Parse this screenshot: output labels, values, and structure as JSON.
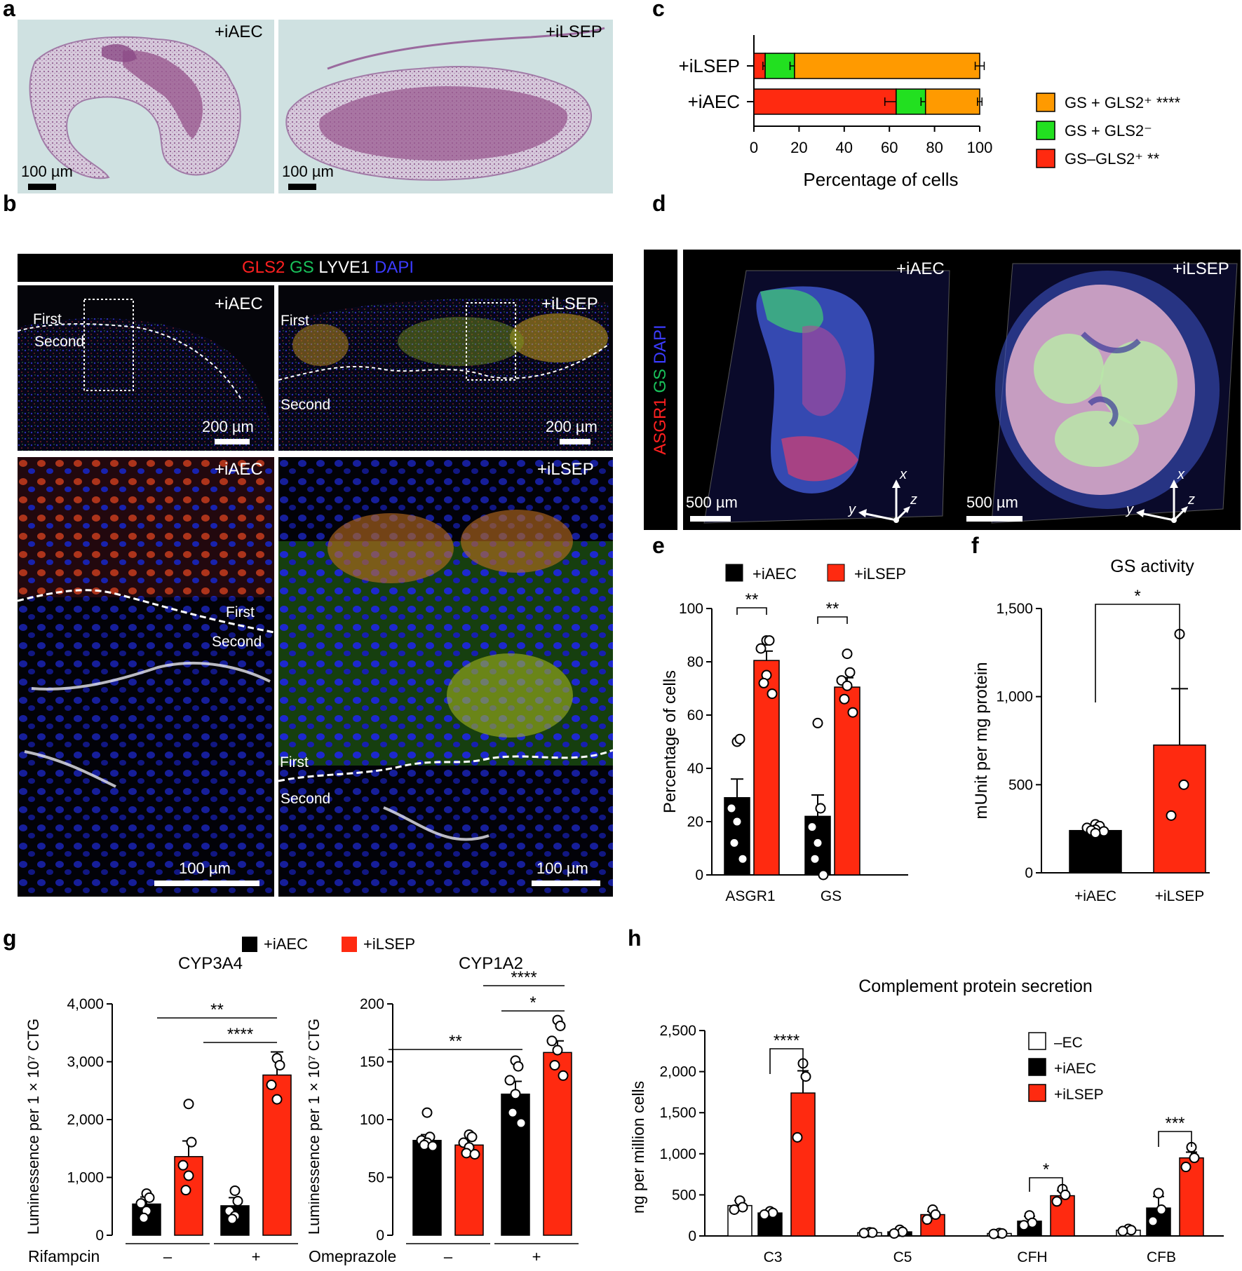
{
  "panel_labels": {
    "a": "a",
    "b": "b",
    "c": "c",
    "d": "d",
    "e": "e",
    "f": "f",
    "g": "g",
    "h": "h"
  },
  "panel_a": {
    "cond_left": "+iAEC",
    "cond_right": "+iLSEP",
    "scale_left": "100 µm",
    "scale_right": "100 µm",
    "colors": {
      "background": "#cfe1e1",
      "tissue": "#9a5a90"
    }
  },
  "panel_b": {
    "legend": {
      "gls2": "GLS2",
      "gs": "GS",
      "lyve1": "LYVE1",
      "dapi": "DAPI"
    },
    "legend_colors": {
      "gls2": "#ff2020",
      "gs": "#19c15a",
      "lyve1": "#ffffff",
      "dapi": "#3b3bff"
    },
    "top_left": {
      "cond": "+iAEC",
      "first": "First",
      "second": "Second",
      "scale": "200 µm"
    },
    "top_right": {
      "cond": "+iLSEP",
      "first": "First",
      "second": "Second",
      "scale": "200 µm"
    },
    "bottom_left": {
      "cond": "+iAEC",
      "first": "First",
      "second": "Second",
      "scale": "100 µm"
    },
    "bottom_right": {
      "cond": "+iLSEP",
      "first": "First",
      "second": "Second",
      "scale": "100 µm"
    }
  },
  "panel_d": {
    "side_label": {
      "asgr1": "ASGR1",
      "gs": "GS",
      "dapi": "DAPI"
    },
    "left": {
      "cond": "+iAEC",
      "scale": "500 µm",
      "x": "x",
      "y": "y",
      "z": "z"
    },
    "right": {
      "cond": "+iLSEP",
      "scale": "500 µm",
      "x": "x",
      "y": "y",
      "z": "z"
    }
  },
  "chart_data": [
    {
      "panel": "c",
      "type": "bar",
      "orientation": "horizontal-stacked",
      "categories": [
        "+iLSEP",
        "+iAEC"
      ],
      "series": [
        {
          "name": "GS–GLS2⁺ **",
          "color": "#ff2a10",
          "values": [
            5,
            63
          ],
          "errors": [
            1,
            5
          ]
        },
        {
          "name": "GS + GLS2⁻",
          "color": "#22e020",
          "values": [
            13,
            13
          ],
          "errors": [
            2,
            2
          ]
        },
        {
          "name": "GS + GLS2⁺ ****",
          "color": "#ff9a00",
          "values": [
            82,
            24
          ],
          "errors": [
            2,
            1
          ]
        }
      ],
      "legend_order": [
        "GS + GLS2⁺ ****",
        "GS + GLS2⁻",
        "GS–GLS2⁺ **"
      ],
      "xlabel": "Percentage of cells",
      "xlim": [
        0,
        100
      ],
      "xticks": [
        "0",
        "20",
        "40",
        "60",
        "80",
        "100"
      ],
      "legend_position": "right"
    },
    {
      "panel": "e",
      "type": "bar",
      "categories": [
        "ASGR1",
        "GS"
      ],
      "series": [
        {
          "name": "+iAEC",
          "color": "#000000",
          "values": [
            29,
            22
          ],
          "errors": [
            7,
            8
          ],
          "points": [
            [
              50,
              51,
              25,
              20,
              12,
              6
            ],
            [
              57,
              25,
              18,
              12,
              6,
              0
            ]
          ]
        },
        {
          "name": "+iLSEP",
          "color": "#ff2a10",
          "values": [
            80.5,
            70.5
          ],
          "errors": [
            3.5,
            3.5
          ],
          "points": [
            [
              88,
              88,
              85,
              75,
              72,
              68
            ],
            [
              83,
              76,
              73,
              71,
              66,
              61
            ]
          ]
        }
      ],
      "ylabel": "Percentage  of cells",
      "ylim": [
        0,
        100
      ],
      "yticks": [
        "0",
        "20",
        "40",
        "60",
        "80",
        "100"
      ],
      "significance": [
        "**",
        "**"
      ],
      "legend_position": "top"
    },
    {
      "panel": "f",
      "type": "bar",
      "title": "GS activity",
      "categories": [
        "+iAEC",
        "+iLSEP"
      ],
      "values": [
        240,
        725
      ],
      "errors": [
        18,
        320
      ],
      "colors": [
        "#000000",
        "#ff2a10"
      ],
      "points": [
        [
          275,
          265,
          255,
          245,
          240,
          235,
          225
        ],
        [
          1355,
          500,
          325
        ]
      ],
      "ylabel": "mUnit per mg protein",
      "ylim": [
        0,
        1500
      ],
      "yticks": [
        "0",
        "500",
        "1,000",
        "1,500"
      ],
      "significance": [
        "*"
      ]
    },
    {
      "panel": "g-left",
      "type": "bar",
      "title": "CYP3A4",
      "series_names": [
        "+iAEC",
        "+iLSEP"
      ],
      "categories": [
        "–",
        "–",
        "+",
        "+"
      ],
      "groups": [
        {
          "treatment": "–",
          "series": "+iAEC",
          "value": 540,
          "error": 120,
          "points": [
            720,
            650,
            550,
            420,
            300
          ]
        },
        {
          "treatment": "–",
          "series": "+iLSEP",
          "value": 1360,
          "error": 270,
          "points": [
            2270,
            1610,
            1210,
            1030,
            780
          ]
        },
        {
          "treatment": "+",
          "series": "+iAEC",
          "value": 510,
          "error": 140,
          "points": [
            770,
            590,
            420,
            330,
            280
          ]
        },
        {
          "treatment": "+",
          "series": "+iLSEP",
          "value": 2770,
          "error": 400,
          "points": [
            3060,
            2940,
            2600,
            2350
          ]
        }
      ],
      "ylabel": "Luminessence per 1 × 10⁷ CTG",
      "xlabel": "Rifampcin",
      "ylim": [
        0,
        4000
      ],
      "yticks": [
        "0",
        "1,000",
        "2,000",
        "3,000",
        "4,000"
      ],
      "significance": [
        "**",
        "****"
      ]
    },
    {
      "panel": "g-right",
      "type": "bar",
      "title": "CYP1A2",
      "series_names": [
        "+iAEC",
        "+iLSEP"
      ],
      "categories": [
        "–",
        "–",
        "+",
        "+"
      ],
      "groups": [
        {
          "treatment": "–",
          "series": "+iAEC",
          "value": 82,
          "error": 5,
          "points": [
            106,
            85,
            82,
            80,
            78,
            77
          ]
        },
        {
          "treatment": "–",
          "series": "+iLSEP",
          "value": 78,
          "error": 4,
          "points": [
            87,
            85,
            80,
            76,
            71,
            70
          ]
        },
        {
          "treatment": "+",
          "series": "+iAEC",
          "value": 122,
          "error": 11,
          "points": [
            151,
            146,
            134,
            122,
            106,
            97
          ]
        },
        {
          "treatment": "+",
          "series": "+iLSEP",
          "value": 158,
          "error": 10,
          "points": [
            186,
            181,
            168,
            160,
            147,
            138
          ]
        }
      ],
      "ylabel": "Luminessence per 1 × 10⁷ CTG",
      "xlabel": "Omeprazole",
      "ylim": [
        0,
        200
      ],
      "yticks": [
        "0",
        "50",
        "100",
        "150",
        "200"
      ],
      "significance": [
        "**",
        "****",
        "*"
      ]
    },
    {
      "panel": "h",
      "type": "bar",
      "title": "Complement protein secretion",
      "categories": [
        "C3",
        "C5",
        "CFH",
        "CFB"
      ],
      "series": [
        {
          "name": "–EC",
          "color": "#ffffff",
          "values": [
            370,
            40,
            30,
            70
          ],
          "errors": [
            60,
            10,
            10,
            10
          ],
          "points": [
            [
              430,
              350,
              320
            ],
            [
              45,
              40,
              35
            ],
            [
              35,
              30,
              25
            ],
            [
              85,
              70,
              60
            ]
          ]
        },
        {
          "name": "+iAEC",
          "color": "#000000",
          "values": [
            280,
            50,
            180,
            340
          ],
          "errors": [
            20,
            20,
            60,
            140
          ],
          "points": [
            [
              300,
              280,
              260
            ],
            [
              75,
              50,
              30
            ],
            [
              250,
              160,
              130
            ],
            [
              520,
              320,
              180
            ]
          ]
        },
        {
          "name": "+iLSEP",
          "color": "#ff2a10",
          "values": [
            1740,
            260,
            490,
            950
          ],
          "errors": [
            270,
            40,
            60,
            70
          ],
          "points": [
            [
              2100,
              1940,
              1200
            ],
            [
              320,
              260,
              200
            ],
            [
              570,
              500,
              420
            ],
            [
              1080,
              950,
              840
            ]
          ]
        }
      ],
      "ylabel": "ng per million cells",
      "ylim": [
        0,
        2500
      ],
      "yticks": [
        "0",
        "500",
        "1,000",
        "1,500",
        "2,000",
        "2,500"
      ],
      "significance": [
        "****",
        "*",
        "***"
      ],
      "legend_position": "top-right"
    }
  ]
}
